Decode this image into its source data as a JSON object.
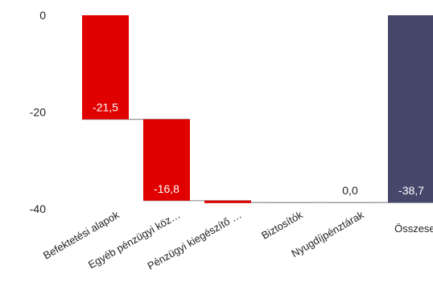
{
  "chart_data": {
    "type": "waterfall",
    "categories": [
      "Befektetési alapok",
      "Egyéb pénzügyi köz…",
      "Pénzügyi kiegészítő …",
      "Biztosítók",
      "Nyugdíjpénztárak",
      "Összesen"
    ],
    "values": [
      -21.5,
      -16.8,
      -0.4,
      0.0,
      0.0,
      -38.7
    ],
    "data_labels": [
      "-21,5",
      "-16,8",
      "",
      "",
      "0,0",
      "-38,7"
    ],
    "is_total": [
      false,
      false,
      false,
      false,
      false,
      true
    ],
    "yticks": [
      0,
      -20,
      -40
    ],
    "ytick_labels": [
      "0",
      "-20",
      "-40"
    ],
    "ylim": [
      -40,
      0
    ],
    "grid": false,
    "colors": {
      "decrease": "#e00000",
      "total": "#46476b",
      "connector": "#9a9a9a",
      "label_inside": "#ffffff",
      "label_outside": "#222222"
    }
  }
}
